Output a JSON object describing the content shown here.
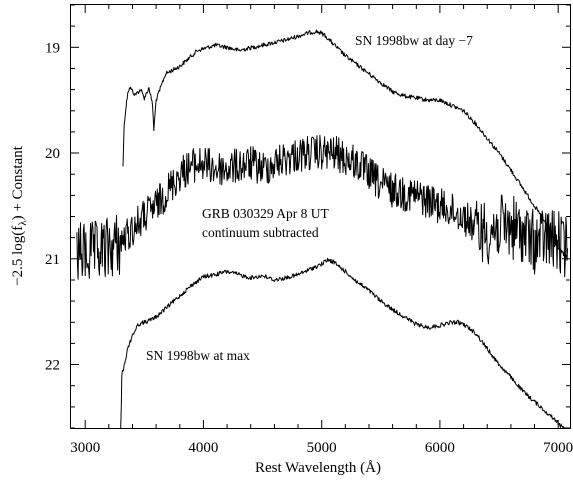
{
  "chart_data": {
    "type": "line",
    "xlabel": "Rest Wavelength (Å)",
    "ylabel": "−2.5 log(f",
    "ylabel_sub": "λ",
    "ylabel_tail": ") + Constant",
    "xlim": [
      2880,
      7100
    ],
    "ylim": [
      22.6,
      18.6
    ],
    "y_inverted": true,
    "grid": false,
    "x_ticks": [
      3000,
      4000,
      5000,
      6000,
      7000
    ],
    "x_tick_labels": [
      "3000",
      "4000",
      "5000",
      "6000",
      "7000"
    ],
    "y_ticks": [
      19,
      20,
      21,
      22
    ],
    "y_tick_labels": [
      "19",
      "20",
      "21",
      "22"
    ],
    "annotations": [
      {
        "lines": [
          "SN 1998bw at day −7"
        ]
      },
      {
        "lines": [
          "GRB 030329 Apr 8 UT",
          "continuum subtracted"
        ]
      },
      {
        "lines": [
          "SN 1998bw at max"
        ]
      }
    ],
    "series": [
      {
        "noise": 0.02,
        "x": [
          3320,
          3330,
          3360,
          3380,
          3420,
          3470,
          3500,
          3540,
          3570,
          3580,
          3600,
          3680,
          3800,
          3950,
          4100,
          4200,
          4300,
          4500,
          4700,
          4900,
          4960,
          5020,
          5100,
          5200,
          5400,
          5600,
          5700,
          5800,
          5900,
          6000,
          6100,
          6200,
          6300,
          6400,
          6500,
          6600,
          6700,
          6800,
          6900,
          7000,
          7080
        ],
        "y": [
          20.12,
          19.72,
          19.42,
          19.38,
          19.45,
          19.4,
          19.48,
          19.38,
          19.55,
          19.78,
          19.5,
          19.25,
          19.18,
          19.03,
          18.98,
          19.0,
          19.03,
          18.98,
          18.93,
          18.86,
          18.85,
          18.88,
          18.97,
          19.08,
          19.25,
          19.42,
          19.46,
          19.48,
          19.5,
          19.5,
          19.55,
          19.6,
          19.72,
          19.86,
          20.0,
          20.16,
          20.33,
          20.5,
          20.68,
          20.9,
          21.0
        ]
      },
      {
        "noise": 0.17,
        "x": [
          2930,
          3000,
          3100,
          3200,
          3300,
          3400,
          3500,
          3600,
          3700,
          3800,
          3900,
          4000,
          4100,
          4200,
          4300,
          4400,
          4500,
          4600,
          4700,
          4800,
          4900,
          5000,
          5100,
          5200,
          5300,
          5400,
          5500,
          5600,
          5700,
          5800,
          5900,
          6000,
          6100,
          6200,
          6300,
          6400,
          6500,
          6600,
          6700,
          6800,
          6900,
          7000,
          7080
        ],
        "y": [
          20.95,
          20.95,
          20.95,
          20.9,
          20.85,
          20.72,
          20.6,
          20.5,
          20.35,
          20.2,
          20.12,
          20.1,
          20.15,
          20.15,
          20.12,
          20.1,
          20.15,
          20.1,
          20.05,
          20.02,
          20.0,
          20.0,
          20.0,
          20.05,
          20.1,
          20.2,
          20.3,
          20.35,
          20.38,
          20.4,
          20.45,
          20.5,
          20.55,
          20.6,
          20.7,
          20.75,
          20.7,
          20.7,
          20.75,
          20.85,
          20.8,
          20.85,
          20.9
        ]
      },
      {
        "noise": 0.02,
        "x": [
          3300,
          3310,
          3330,
          3360,
          3400,
          3450,
          3500,
          3550,
          3600,
          3700,
          3800,
          3900,
          4000,
          4100,
          4200,
          4300,
          4400,
          4500,
          4600,
          4700,
          4800,
          4900,
          5000,
          5050,
          5100,
          5200,
          5300,
          5400,
          5500,
          5600,
          5700,
          5800,
          5900,
          6000,
          6100,
          6150,
          6200,
          6300,
          6400,
          6500,
          6600,
          6700,
          6800,
          6900,
          7000,
          7080
        ],
        "y": [
          22.65,
          22.1,
          22.0,
          21.85,
          21.72,
          21.62,
          21.6,
          21.58,
          21.55,
          21.45,
          21.35,
          21.25,
          21.17,
          21.15,
          21.12,
          21.15,
          21.18,
          21.16,
          21.2,
          21.18,
          21.15,
          21.1,
          21.05,
          21.01,
          21.03,
          21.12,
          21.22,
          21.3,
          21.4,
          21.48,
          21.55,
          21.62,
          21.65,
          21.63,
          21.6,
          21.6,
          21.62,
          21.7,
          21.85,
          22.0,
          22.12,
          22.25,
          22.35,
          22.45,
          22.55,
          22.65
        ]
      }
    ]
  }
}
